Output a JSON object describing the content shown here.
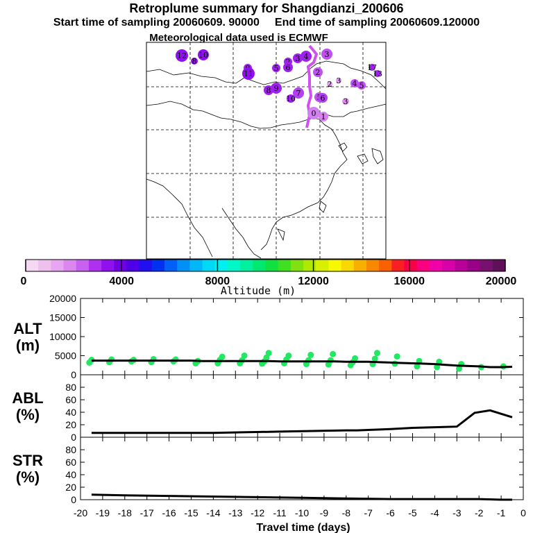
{
  "header": {
    "title": "Retroplume summary for Shangdianzi_200606",
    "start_label": "Start time of sampling 20060609. 90000",
    "end_label": "End time of sampling 20060609.120000",
    "met_label": "Meteorological data used is ECMWF"
  },
  "colorbar": {
    "label": "Altitude (m)",
    "ticks": [
      "0",
      "4000",
      "8000",
      "12000",
      "16000",
      "20000"
    ],
    "colors": [
      "#f4d8f4",
      "#eec0ee",
      "#e8a6f0",
      "#dc86f0",
      "#c860f0",
      "#b030f0",
      "#9010f0",
      "#7000e0",
      "#5000e8",
      "#2010f0",
      "#0030f0",
      "#0060f8",
      "#0090f8",
      "#00b8f8",
      "#00d8f8",
      "#00f0f0",
      "#00f8c8",
      "#00f0a0",
      "#00e870",
      "#10e040",
      "#40e020",
      "#80e010",
      "#b0e800",
      "#d8f000",
      "#f8f800",
      "#f8d800",
      "#f8b000",
      "#f88800",
      "#f86000",
      "#f82020",
      "#f80048",
      "#f80080",
      "#f000a8",
      "#d800a8",
      "#b80098",
      "#980088",
      "#781070",
      "#601058"
    ]
  },
  "chart_data": [
    {
      "name": "ALT",
      "type": "line",
      "ylabel": "ALT\n(m)",
      "ylabel_lines": [
        "ALT",
        "(m)"
      ],
      "ylim": [
        0,
        20000
      ],
      "yticks": [
        "0",
        "5000",
        "10000",
        "15000",
        "20000"
      ],
      "x": [
        -19.5,
        -19,
        -18.5,
        -18,
        -17.5,
        -17,
        -16.5,
        -16,
        -15.5,
        -15,
        -14.5,
        -14,
        -13.5,
        -13,
        -12.5,
        -12,
        -11.5,
        -11,
        -10.5,
        -10,
        -9.5,
        -9,
        -8.5,
        -8,
        -7.5,
        -7,
        -6.5,
        -6,
        -5.5,
        -5,
        -4.5,
        -4,
        -3.5,
        -3,
        -2.5,
        -2,
        -1.5,
        -1,
        -0.5
      ],
      "values": [
        3700,
        3700,
        3700,
        3700,
        3700,
        3700,
        3700,
        3700,
        3700,
        3700,
        3600,
        3600,
        3600,
        3600,
        3600,
        3600,
        3600,
        3500,
        3500,
        3500,
        3500,
        3500,
        3500,
        3400,
        3400,
        3400,
        3300,
        3200,
        3100,
        3000,
        2900,
        2800,
        2600,
        2400,
        2300,
        2200,
        2000,
        2000,
        2100
      ],
      "scatter": [
        {
          "x": -19.6,
          "y": 3200
        },
        {
          "x": -19.5,
          "y": 3900
        },
        {
          "x": -18.7,
          "y": 3300
        },
        {
          "x": -18.6,
          "y": 4000
        },
        {
          "x": -17.7,
          "y": 3500
        },
        {
          "x": -17.6,
          "y": 3900
        },
        {
          "x": -16.8,
          "y": 3300
        },
        {
          "x": -16.7,
          "y": 4100
        },
        {
          "x": -15.8,
          "y": 3500
        },
        {
          "x": -15.7,
          "y": 4000
        },
        {
          "x": -14.8,
          "y": 3000
        },
        {
          "x": -14.7,
          "y": 3600
        },
        {
          "x": -13.8,
          "y": 3000
        },
        {
          "x": -13.7,
          "y": 3900
        },
        {
          "x": -13.6,
          "y": 4700
        },
        {
          "x": -12.8,
          "y": 3000
        },
        {
          "x": -12.7,
          "y": 3800
        },
        {
          "x": -12.6,
          "y": 5000
        },
        {
          "x": -11.8,
          "y": 2900
        },
        {
          "x": -11.7,
          "y": 3500
        },
        {
          "x": -11.6,
          "y": 4500
        },
        {
          "x": -11.5,
          "y": 5700
        },
        {
          "x": -10.8,
          "y": 3000
        },
        {
          "x": -10.7,
          "y": 4000
        },
        {
          "x": -10.6,
          "y": 5000
        },
        {
          "x": -9.8,
          "y": 2800
        },
        {
          "x": -9.7,
          "y": 3800
        },
        {
          "x": -9.6,
          "y": 5200
        },
        {
          "x": -8.8,
          "y": 2700
        },
        {
          "x": -8.7,
          "y": 3800
        },
        {
          "x": -8.6,
          "y": 5400
        },
        {
          "x": -7.8,
          "y": 2500
        },
        {
          "x": -7.7,
          "y": 3300
        },
        {
          "x": -7.6,
          "y": 4300
        },
        {
          "x": -6.8,
          "y": 2800
        },
        {
          "x": -6.7,
          "y": 4200
        },
        {
          "x": -6.6,
          "y": 5700
        },
        {
          "x": -5.8,
          "y": 2900
        },
        {
          "x": -5.7,
          "y": 4800
        },
        {
          "x": -4.8,
          "y": 2200
        },
        {
          "x": -4.7,
          "y": 3600
        },
        {
          "x": -3.9,
          "y": 2000
        },
        {
          "x": -3.8,
          "y": 3400
        },
        {
          "x": -2.9,
          "y": 1600
        },
        {
          "x": -2.8,
          "y": 2800
        },
        {
          "x": -1.9,
          "y": 2000
        },
        {
          "x": -0.9,
          "y": 2200
        }
      ],
      "scatter_color": "#20e860",
      "grid": false
    },
    {
      "name": "ABL",
      "type": "line",
      "ylabel_lines": [
        "ABL",
        "(%)"
      ],
      "ylim": [
        0,
        100
      ],
      "yticks": [
        "0",
        "20",
        "40",
        "60",
        "80"
      ],
      "x": [
        -19.5,
        -18,
        -16,
        -14,
        -12.5,
        -11,
        -9.5,
        -8,
        -7.5,
        -6,
        -5,
        -4,
        -3,
        -2.2,
        -1.5,
        -0.5
      ],
      "values": [
        7,
        7,
        7,
        7,
        8,
        9,
        10,
        11,
        11,
        13,
        15,
        16,
        17,
        39,
        43,
        32
      ],
      "grid": false
    },
    {
      "name": "STR",
      "type": "line",
      "ylabel_lines": [
        "STR",
        "(%)"
      ],
      "ylim": [
        0,
        100
      ],
      "yticks": [
        "0",
        "20",
        "40",
        "60",
        "80"
      ],
      "x": [
        -19.5,
        -18,
        -16,
        -14,
        -12,
        -10,
        -8,
        -6,
        -4,
        -2,
        -1,
        -0.5
      ],
      "values": [
        8,
        7,
        6,
        5,
        4,
        3,
        2,
        1,
        1,
        1,
        0,
        0
      ],
      "xlabel": "Travel time (days)",
      "xticks": [
        "-20",
        "-19",
        "-18",
        "-17",
        "-16",
        "-15",
        "-14",
        "-13",
        "-12",
        "-11",
        "-10",
        "-9",
        "-8",
        "-7",
        "-6",
        "-5",
        "-4",
        "-3",
        "-2",
        "-1",
        "0"
      ],
      "xlim": [
        -20,
        0
      ],
      "grid": false
    }
  ],
  "map": {
    "plume_color": "#d050f0",
    "labels": [
      {
        "t": "12",
        "c": "#9010f0"
      },
      {
        "t": "10",
        "c": "#9010f0"
      },
      {
        "t": "8",
        "c": "#9010f0"
      },
      {
        "t": "9",
        "c": "#a020f0"
      },
      {
        "t": "11",
        "c": "#9010f0"
      },
      {
        "t": "2",
        "c": "#a020f0"
      },
      {
        "t": "3",
        "c": "#a020f0"
      },
      {
        "t": "4",
        "c": "#a020f0"
      },
      {
        "t": "2",
        "c": "#c050f0"
      },
      {
        "t": "3",
        "c": "#c050f0"
      },
      {
        "t": "5",
        "c": "#a020f0"
      },
      {
        "t": "6",
        "c": "#a020f0"
      },
      {
        "t": "9",
        "c": "#a020f0"
      },
      {
        "t": "10",
        "c": "#a020f0"
      },
      {
        "t": "8",
        "c": "#a020f0"
      },
      {
        "t": "7",
        "c": "#b040f0"
      },
      {
        "t": "5",
        "c": "#c050f0"
      },
      {
        "t": "6",
        "c": "#b040f0"
      },
      {
        "t": "0",
        "c": "#d080f0"
      },
      {
        "t": "1",
        "c": "#d880f0"
      },
      {
        "t": "3",
        "c": "#e090f0"
      },
      {
        "t": "4",
        "c": "#c050f0"
      },
      {
        "t": "5",
        "c": "#c050f0"
      },
      {
        "t": "3",
        "c": "#e0a0f0"
      },
      {
        "t": "2",
        "c": "#e0a0f0"
      },
      {
        "t": "17",
        "c": "#a020f0"
      },
      {
        "t": "13",
        "c": "#a020f0"
      }
    ]
  }
}
